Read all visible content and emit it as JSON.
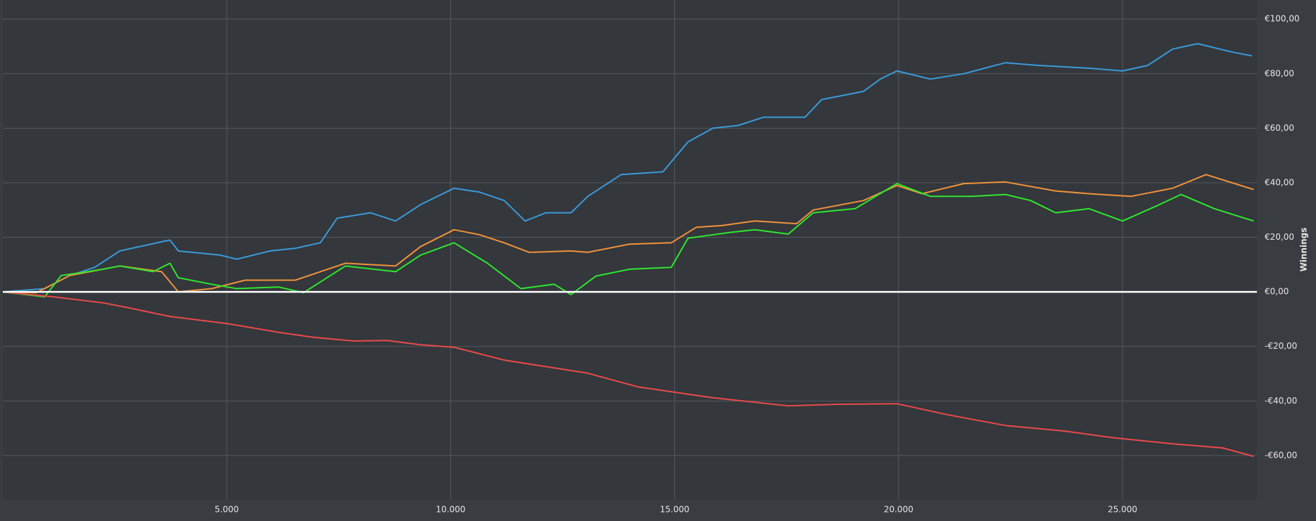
{
  "chart_data": {
    "type": "line",
    "y_axis_label": "Winnings",
    "grid": true,
    "xlim": [
      0,
      28000
    ],
    "ylim": [
      -76,
      107
    ],
    "xticks": [
      {
        "value": 5000,
        "label": "5.000"
      },
      {
        "value": 10000,
        "label": "10.000"
      },
      {
        "value": 15000,
        "label": "15.000"
      },
      {
        "value": 20000,
        "label": "20.000"
      },
      {
        "value": 25000,
        "label": "25.000"
      }
    ],
    "yticks": [
      {
        "value": -60,
        "label": "-€60,00"
      },
      {
        "value": -40,
        "label": "-€40,00"
      },
      {
        "value": -20,
        "label": "-€20,00"
      },
      {
        "value": 0,
        "label": "€0,00"
      },
      {
        "value": 20,
        "label": "€20,00"
      },
      {
        "value": 40,
        "label": "€40,00"
      },
      {
        "value": 60,
        "label": "€60,00"
      },
      {
        "value": 80,
        "label": "€80,00"
      },
      {
        "value": 100,
        "label": "€100,00"
      }
    ],
    "series": [
      {
        "color": "#3a9ad9",
        "x": [
          0,
          933,
          1493,
          2052,
          2612,
          3731,
          3918,
          4851,
          5224,
          5970,
          6530,
          7090,
          7463,
          8209,
          8769,
          9328,
          10075,
          10634,
          11194,
          11660,
          12127,
          12687,
          13060,
          13806,
          14739,
          15299,
          15858,
          16418,
          16978,
          17910,
          18284,
          19216,
          19590,
          19963,
          20709,
          21455,
          22388,
          23134,
          24254,
          25000,
          25560,
          26119,
          26679,
          27425,
          27892
        ],
        "values": [
          0,
          1.2,
          6,
          9,
          15,
          19,
          15,
          13.5,
          12,
          15,
          16,
          18,
          27,
          29,
          26,
          32,
          38,
          36.6,
          33.5,
          26,
          29,
          29,
          35,
          43,
          44,
          55,
          60,
          61,
          64,
          64,
          70.5,
          73.5,
          78,
          81,
          78,
          80,
          84,
          83,
          82,
          81,
          83,
          89,
          91,
          88,
          86.5
        ]
      },
      {
        "color": "#f0923a",
        "x": [
          0,
          746,
          1119,
          1493,
          2612,
          3545,
          3918,
          4664,
          5410,
          6530,
          7090,
          7649,
          8769,
          9328,
          10075,
          10634,
          11194,
          11754,
          12687,
          13060,
          13993,
          14925,
          15485,
          16045,
          16791,
          17724,
          18097,
          19216,
          19963,
          20522,
          21455,
          22388,
          23507,
          24254,
          25187,
          26119,
          26866,
          27929
        ],
        "values": [
          0,
          -0.3,
          2.8,
          6,
          9.5,
          7.4,
          0,
          1.2,
          4.3,
          4.3,
          7.4,
          10.5,
          9.5,
          16.6,
          22.8,
          21,
          18,
          14.5,
          15,
          14.5,
          17.5,
          18,
          23.7,
          24.3,
          26,
          25,
          30,
          33.5,
          39,
          36,
          39.7,
          40.3,
          37,
          36,
          35,
          38,
          43,
          37.5
        ]
      },
      {
        "color": "#2ee62e",
        "x": [
          0,
          933,
          1306,
          2239,
          2612,
          3358,
          3731,
          3918,
          4664,
          5224,
          6157,
          6716,
          7649,
          8769,
          9328,
          10075,
          10821,
          11567,
          12313,
          12687,
          13246,
          13993,
          14925,
          15299,
          16231,
          16791,
          17537,
          18097,
          19030,
          19963,
          20709,
          21642,
          22388,
          22948,
          23507,
          24254,
          25000,
          25746,
          26306,
          27052,
          27929
        ],
        "values": [
          0,
          -1.8,
          6,
          8.3,
          9.5,
          7.4,
          10.5,
          5.2,
          2.8,
          1.2,
          1.8,
          -0.3,
          9.5,
          7.4,
          13.5,
          18,
          10.5,
          1.2,
          2.8,
          -1,
          5.8,
          8.3,
          9,
          19.7,
          21.8,
          22.8,
          21.2,
          29,
          30.5,
          39.7,
          35,
          35,
          35.7,
          33.5,
          29,
          30.5,
          26,
          31.4,
          35.7,
          30.5,
          26
        ]
      },
      {
        "color": "#e84a4a",
        "x": [
          0,
          1119,
          2239,
          2799,
          3731,
          5037,
          6157,
          6903,
          7836,
          8582,
          9328,
          10075,
          11194,
          13060,
          14179,
          15858,
          17537,
          18657,
          19963,
          21082,
          22388,
          23694,
          24813,
          26119,
          27239,
          27929
        ],
        "values": [
          0,
          -1.8,
          -4,
          -5.8,
          -9,
          -11.7,
          -14.8,
          -16.6,
          -18,
          -17.8,
          -19.4,
          -20.3,
          -25,
          -29.8,
          -34.8,
          -38.8,
          -41.8,
          -41.2,
          -41,
          -45,
          -49,
          -51,
          -53.5,
          -55.7,
          -57.2,
          -60.3
        ]
      }
    ]
  }
}
